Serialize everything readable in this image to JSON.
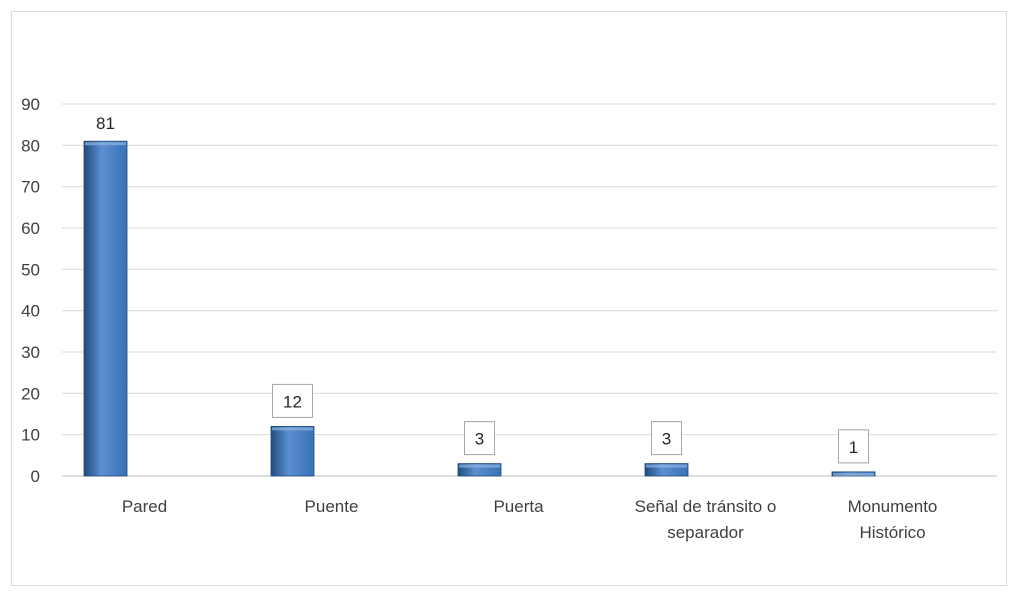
{
  "chart_data": {
    "type": "bar",
    "categories": [
      [
        "Pared"
      ],
      [
        "Puente"
      ],
      [
        "Puerta"
      ],
      [
        "Señal de tránsito o",
        "separador"
      ],
      [
        "Monumento",
        "Histórico"
      ]
    ],
    "values": [
      81,
      12,
      3,
      3,
      1
    ],
    "data_labels": [
      "81",
      "12",
      "3",
      "3",
      "1"
    ],
    "data_label_boxed": [
      false,
      true,
      true,
      true,
      true
    ],
    "yticks": [
      "0",
      "10",
      "20",
      "30",
      "40",
      "50",
      "60",
      "70",
      "80",
      "90"
    ],
    "ylim": [
      0,
      90
    ],
    "grid": true,
    "legend": "none",
    "colors": {
      "bar_dark": "#1f4a7c",
      "bar_mid": "#3a72b8",
      "bar_light": "#5b8fd0",
      "grid": "#d9d9d9",
      "axis": "#bfbfbf"
    }
  }
}
